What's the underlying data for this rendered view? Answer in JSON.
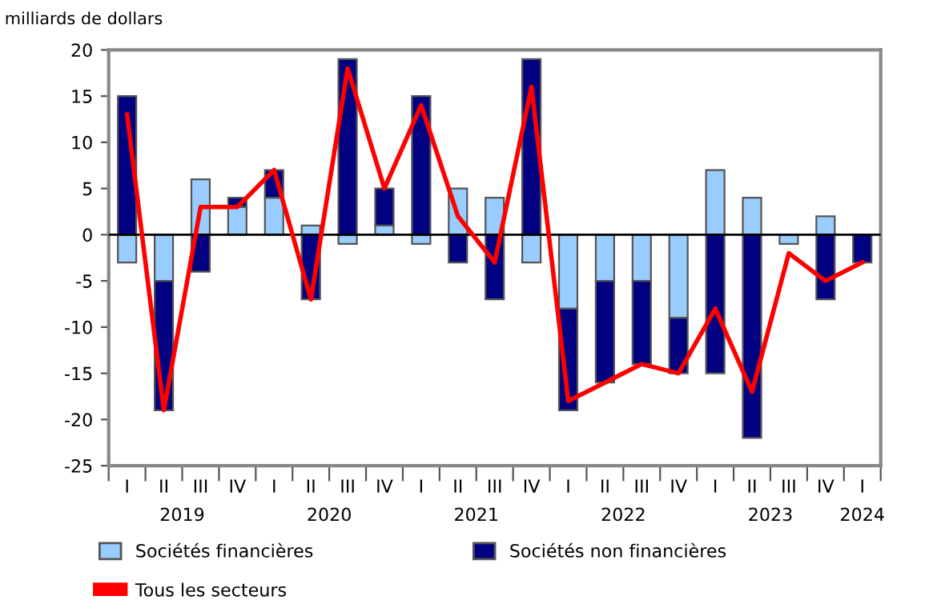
{
  "chart_data": {
    "type": "bar",
    "stacked": true,
    "ylabel": "milliards de dollars",
    "categories": [
      "I",
      "II",
      "III",
      "IV",
      "I",
      "II",
      "III",
      "IV",
      "I",
      "II",
      "III",
      "IV",
      "I",
      "II",
      "III",
      "IV",
      "I",
      "II",
      "III",
      "IV",
      "I"
    ],
    "annotations": [
      "2019",
      "2020",
      "2021",
      "2022",
      "2023",
      "2024"
    ],
    "series": [
      {
        "name": "Sociétés financières",
        "color": "#99ccff",
        "values": [
          -3,
          -5,
          6,
          3,
          4,
          1,
          -1,
          1,
          -1,
          5,
          4,
          -3,
          -8,
          -5,
          -5,
          -9,
          7,
          4,
          -1,
          2,
          null
        ]
      },
      {
        "name": "Sociétés non financières",
        "color": "#000080",
        "values": [
          15,
          -14,
          -4,
          1,
          3,
          -7,
          19,
          4,
          15,
          -3,
          -7,
          19,
          -11,
          -11,
          -9,
          -6,
          -15,
          -22,
          null,
          -7,
          -3
        ]
      },
      {
        "name": "Tous les secteurs",
        "type": "line",
        "color": "#ff0000",
        "values": [
          13,
          -19,
          3,
          3,
          7,
          -7,
          18,
          5,
          14,
          2,
          -3,
          16,
          -18,
          -16,
          -14,
          -15,
          -8,
          -17,
          -2,
          -5,
          -3
        ]
      }
    ],
    "ylim": [
      -25,
      20
    ],
    "yticks": [
      -25,
      -20,
      -15,
      -10,
      -5,
      0,
      5,
      10,
      15,
      20
    ],
    "ref_lines": [
      {
        "axis": "y",
        "value": 0,
        "color": "#000000"
      }
    ],
    "legend": "bottom",
    "grid": false,
    "marker": "none",
    "line_style": "solid"
  }
}
